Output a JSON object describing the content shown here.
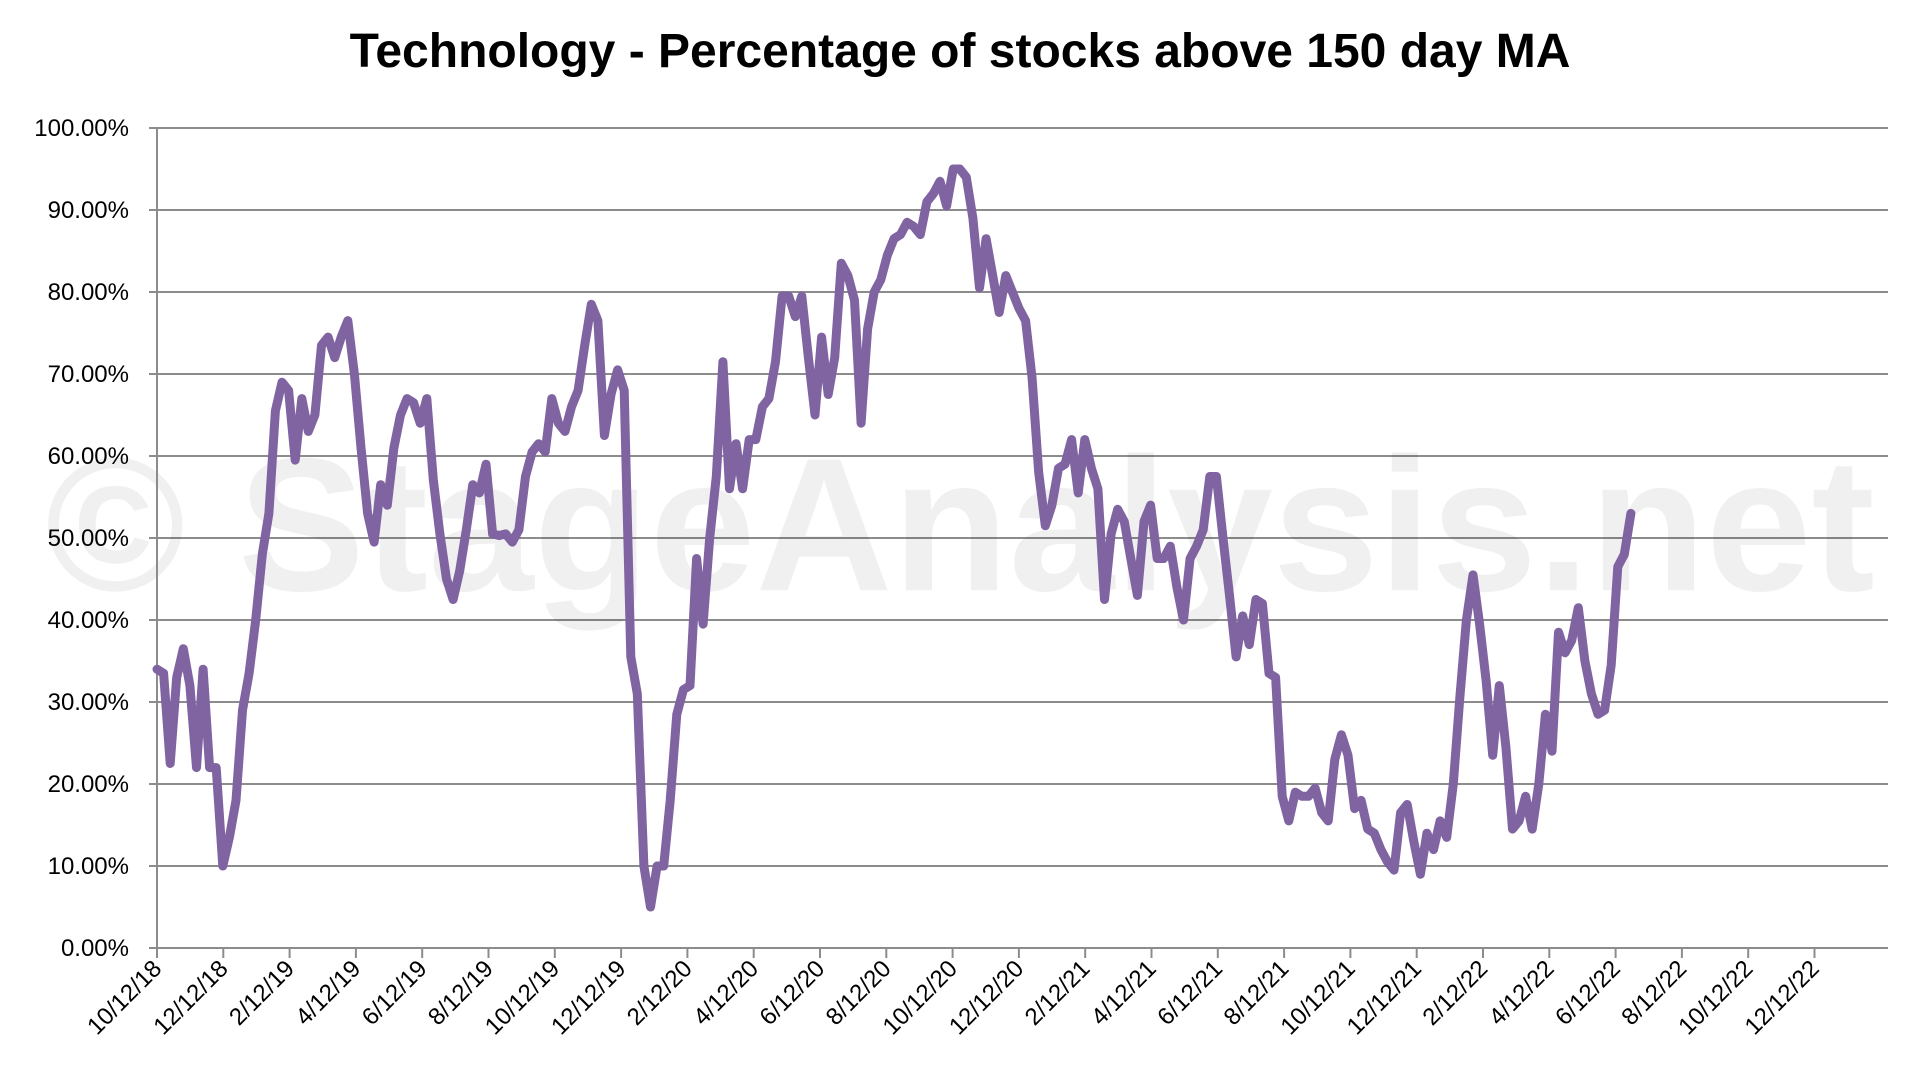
{
  "chart_data": {
    "type": "line",
    "title": "Technology - Percentage of stocks above 150 day MA",
    "watermark": "© StageAnalysis.net",
    "xlabel": "",
    "ylabel": "",
    "ylim": [
      0,
      100
    ],
    "y_ticks": [
      "0.00%",
      "10.00%",
      "20.00%",
      "30.00%",
      "40.00%",
      "50.00%",
      "60.00%",
      "70.00%",
      "80.00%",
      "90.00%",
      "100.00%"
    ],
    "x_ticks": [
      "10/12/18",
      "12/12/18",
      "2/12/19",
      "4/12/19",
      "6/12/19",
      "8/12/19",
      "10/12/19",
      "12/12/19",
      "2/12/20",
      "4/12/20",
      "6/12/20",
      "8/12/20",
      "10/12/20",
      "12/12/20",
      "2/12/21",
      "4/12/21",
      "6/12/21",
      "8/12/21",
      "10/12/21",
      "12/12/21",
      "2/12/22",
      "4/12/22",
      "6/12/22",
      "8/12/22",
      "10/12/22",
      "12/12/22"
    ],
    "grid": true,
    "legend": "none",
    "line_color": "#8064A2",
    "series": [
      {
        "x_start": "10/12/18",
        "frequency": "weekly",
        "values": [
          34,
          33.5,
          22.5,
          33,
          36.5,
          32,
          22,
          34,
          22,
          22,
          10,
          13.5,
          18,
          29,
          33.5,
          40,
          48,
          53,
          65.5,
          69,
          68,
          59.5,
          67,
          63,
          65,
          73.5,
          74.5,
          72,
          74.5,
          76.5,
          70,
          61,
          53,
          49.5,
          56.5,
          54,
          61,
          65,
          67,
          66.5,
          64,
          67,
          57,
          50.5,
          45,
          42.5,
          46,
          51,
          56.5,
          55.5,
          59,
          50.5,
          50.3,
          50.5,
          49.5,
          51,
          57.5,
          60.5,
          61.5,
          60.5,
          67,
          64,
          63,
          66,
          68,
          73.5,
          78.5,
          76.5,
          62.5,
          67.5,
          70.5,
          68,
          35.5,
          31,
          10,
          5,
          10,
          10,
          18,
          28.5,
          31.5,
          32,
          47.5,
          39.5,
          50,
          57.5,
          71.5,
          56,
          61.5,
          56,
          62,
          62,
          66,
          67,
          71.5,
          79.5,
          79.5,
          77,
          79.5,
          72,
          65,
          74.5,
          67.5,
          72,
          83.5,
          82,
          79,
          64,
          75.5,
          80,
          81.5,
          84.5,
          86.5,
          87,
          88.5,
          88,
          87,
          91,
          92,
          93.5,
          90.5,
          95,
          95,
          94,
          89,
          80.5,
          86.5,
          82,
          77.5,
          82,
          80,
          78,
          76.5,
          69.5,
          58,
          51.5,
          54,
          58.5,
          59,
          62,
          55.5,
          62,
          58.5,
          56,
          42.5,
          50.5,
          53.5,
          52,
          47.5,
          43,
          52,
          54,
          47.5,
          47.5,
          49,
          44,
          40,
          47.5,
          49,
          51,
          57.5,
          57.5,
          50,
          43,
          35.5,
          40.5,
          37,
          42.5,
          42,
          33.5,
          33,
          18.5,
          15.5,
          19,
          18.5,
          18.5,
          19.5,
          16.5,
          15.5,
          23,
          26,
          23.5,
          17,
          18,
          14.5,
          14,
          12,
          10.5,
          9.5,
          16.5,
          17.5,
          13,
          9,
          14,
          12,
          15.5,
          13.5,
          20,
          30.5,
          40,
          45.5,
          39.5,
          32.5,
          23.5,
          32,
          24.5,
          14.5,
          15.5,
          18.5,
          14.5,
          20,
          28.5,
          24,
          38.5,
          36,
          37.5,
          41.5,
          35,
          31,
          28.5,
          29,
          34.5,
          46.5,
          48,
          53
        ]
      }
    ]
  }
}
